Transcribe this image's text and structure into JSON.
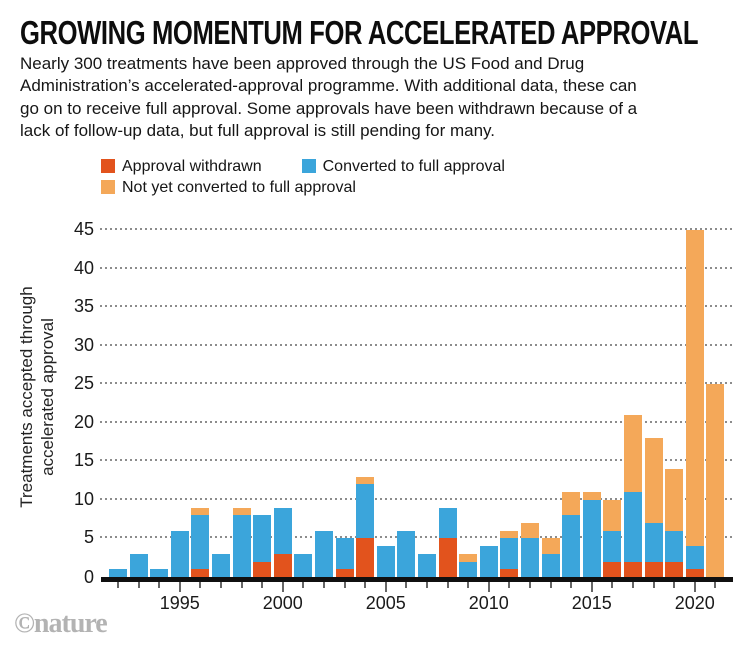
{
  "title": "GROWING MOMENTUM FOR ACCELERATED APPROVAL",
  "subtitle_lines": [
    "Nearly 300 treatments have been approved through the US Food and Drug",
    "Administration’s accelerated-approval programme. With additional data, these can",
    "go on to receive full approval. Some approvals have been withdrawn because of a",
    "lack of follow-up data, but full approval is still pending for many."
  ],
  "credit": "©nature",
  "colors": {
    "withdrawn": "#E2531D",
    "converted": "#3BA5DB",
    "not_converted": "#F4A859",
    "grid": "#8C8C8C",
    "baseline": "#101010",
    "tick": "#666666",
    "credit_gray": "#B3B3B3"
  },
  "legend": [
    {
      "label": "Approval withdrawn",
      "color_key": "withdrawn",
      "row": 1
    },
    {
      "label": "Converted to full approval",
      "color_key": "converted",
      "row": 1
    },
    {
      "label": "Not yet converted to full approval",
      "color_key": "not_converted",
      "row": 2
    }
  ],
  "chart_data": {
    "type": "bar",
    "stacked": true,
    "title": "GROWING MOMENTUM FOR ACCELERATED APPROVAL",
    "xlabel": "",
    "ylabel": "Treatments accepted through accelerated approval",
    "ylabel_lines": [
      "Treatments accepted through",
      "accelerated approval"
    ],
    "ylim": [
      0,
      45
    ],
    "ytick_step": 5,
    "grid": "horizontal dotted",
    "legend_position": "top",
    "x": [
      1992,
      1993,
      1994,
      1995,
      1996,
      1997,
      1998,
      1999,
      2000,
      2001,
      2002,
      2003,
      2004,
      2005,
      2006,
      2007,
      2008,
      2009,
      2010,
      2011,
      2012,
      2013,
      2014,
      2015,
      2016,
      2017,
      2018,
      2019,
      2020,
      2021
    ],
    "xtick_labels": [
      "1995",
      "2000",
      "2005",
      "2010",
      "2015",
      "2020"
    ],
    "series": [
      {
        "name": "Approval withdrawn",
        "color_key": "withdrawn",
        "values": [
          0,
          0,
          0,
          0,
          1,
          0,
          0,
          2,
          3,
          0,
          0,
          1,
          5,
          0,
          0,
          0,
          5,
          0,
          0,
          1,
          0,
          0,
          0,
          0,
          2,
          2,
          2,
          2,
          1,
          0
        ]
      },
      {
        "name": "Converted to full approval",
        "color_key": "converted",
        "values": [
          1,
          3,
          1,
          6,
          7,
          3,
          8,
          6,
          6,
          3,
          6,
          4,
          7,
          4,
          6,
          3,
          4,
          2,
          4,
          4,
          5,
          3,
          8,
          10,
          4,
          9,
          5,
          4,
          3,
          0
        ]
      },
      {
        "name": "Not yet converted to full approval",
        "color_key": "not_converted",
        "values": [
          0,
          0,
          0,
          0,
          1,
          0,
          1,
          0,
          0,
          0,
          0,
          0,
          1,
          0,
          0,
          0,
          0,
          1,
          0,
          1,
          2,
          2,
          3,
          1,
          4,
          10,
          11,
          8,
          41,
          25
        ]
      }
    ],
    "totals": [
      1,
      3,
      1,
      6,
      9,
      3,
      9,
      8,
      9,
      3,
      6,
      5,
      13,
      4,
      6,
      3,
      9,
      3,
      4,
      6,
      7,
      5,
      11,
      11,
      10,
      21,
      18,
      14,
      45,
      25
    ]
  }
}
